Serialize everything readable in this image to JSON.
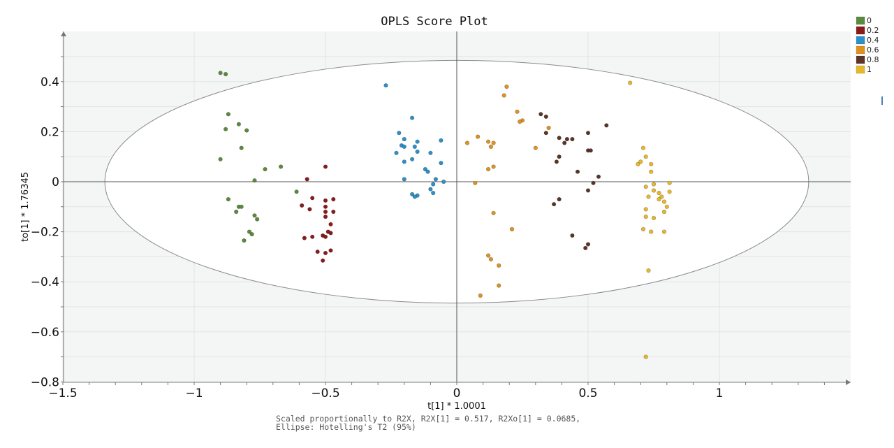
{
  "chart_data": {
    "type": "scatter",
    "title": "OPLS Score Plot",
    "xlabel": "t[1] * 1.0001",
    "ylabel": "to[1] * 1.76345",
    "xlim": [
      -1.5,
      1.5
    ],
    "ylim": [
      -0.8,
      0.55
    ],
    "x_ticks": [
      -1.5,
      -1,
      -0.5,
      0,
      0.5,
      1
    ],
    "x_tick_labels": [
      "−1.5",
      "−1",
      "−0.5",
      "0",
      "0.5",
      "1"
    ],
    "y_ticks": [
      0.4,
      0.2,
      0,
      -0.2,
      -0.4,
      -0.6,
      -0.8
    ],
    "y_tick_labels": [
      "0.4",
      "0.2",
      "0",
      "−0.2",
      "−0.4",
      "−0.6",
      "−0.8"
    ],
    "grid": true,
    "legend_position": "top-right",
    "ellipse": {
      "center": [
        0,
        0
      ],
      "rx": 1.34,
      "ry": 0.485
    },
    "footnote": [
      "Scaled proportionally to R2X, R2X[1] = 0.517, R2Xo[1] = 0.0685,",
      "Ellipse: Hotelling's T2 (95%)"
    ],
    "series": [
      {
        "name": "0",
        "color": "#5a8a3c",
        "points": [
          [
            -0.9,
            0.435
          ],
          [
            -0.88,
            0.43
          ],
          [
            -0.87,
            0.27
          ],
          [
            -0.83,
            0.23
          ],
          [
            -0.8,
            0.205
          ],
          [
            -0.88,
            0.21
          ],
          [
            -0.82,
            0.135
          ],
          [
            -0.9,
            0.09
          ],
          [
            -0.67,
            0.06
          ],
          [
            -0.73,
            0.05
          ],
          [
            -0.77,
            0.005
          ],
          [
            -0.61,
            -0.04
          ],
          [
            -0.87,
            -0.07
          ],
          [
            -0.83,
            -0.1
          ],
          [
            -0.82,
            -0.1
          ],
          [
            -0.84,
            -0.12
          ],
          [
            -0.77,
            -0.135
          ],
          [
            -0.76,
            -0.15
          ],
          [
            -0.79,
            -0.2
          ],
          [
            -0.78,
            -0.21
          ],
          [
            -0.81,
            -0.235
          ]
        ]
      },
      {
        "name": "0.2",
        "color": "#8b1a1a",
        "points": [
          [
            -0.5,
            0.06
          ],
          [
            -0.57,
            0.01
          ],
          [
            -0.55,
            -0.065
          ],
          [
            -0.5,
            -0.075
          ],
          [
            -0.47,
            -0.07
          ],
          [
            -0.59,
            -0.095
          ],
          [
            -0.5,
            -0.1
          ],
          [
            -0.56,
            -0.11
          ],
          [
            -0.5,
            -0.12
          ],
          [
            -0.47,
            -0.12
          ],
          [
            -0.5,
            -0.14
          ],
          [
            -0.48,
            -0.17
          ],
          [
            -0.49,
            -0.2
          ],
          [
            -0.48,
            -0.205
          ],
          [
            -0.51,
            -0.215
          ],
          [
            -0.58,
            -0.225
          ],
          [
            -0.55,
            -0.22
          ],
          [
            -0.5,
            -0.22
          ],
          [
            -0.53,
            -0.28
          ],
          [
            -0.5,
            -0.285
          ],
          [
            -0.48,
            -0.275
          ],
          [
            -0.51,
            -0.315
          ]
        ]
      },
      {
        "name": "0.4",
        "color": "#2e90c8",
        "points": [
          [
            -0.27,
            0.385
          ],
          [
            -0.17,
            0.255
          ],
          [
            -0.22,
            0.195
          ],
          [
            -0.2,
            0.17
          ],
          [
            -0.15,
            0.16
          ],
          [
            -0.06,
            0.165
          ],
          [
            -0.21,
            0.145
          ],
          [
            -0.2,
            0.14
          ],
          [
            -0.16,
            0.14
          ],
          [
            -0.23,
            0.115
          ],
          [
            -0.15,
            0.12
          ],
          [
            -0.1,
            0.115
          ],
          [
            -0.17,
            0.09
          ],
          [
            -0.2,
            0.08
          ],
          [
            -0.06,
            0.075
          ],
          [
            -0.12,
            0.05
          ],
          [
            -0.11,
            0.04
          ],
          [
            -0.08,
            0.01
          ],
          [
            -0.2,
            0.01
          ],
          [
            -0.05,
            0.0
          ],
          [
            -0.09,
            -0.01
          ],
          [
            -0.1,
            -0.03
          ],
          [
            -0.09,
            -0.045
          ],
          [
            -0.17,
            -0.05
          ],
          [
            -0.15,
            -0.055
          ],
          [
            -0.16,
            -0.06
          ]
        ]
      },
      {
        "name": "0.6",
        "color": "#e0921f",
        "points": [
          [
            0.19,
            0.38
          ],
          [
            0.18,
            0.345
          ],
          [
            0.23,
            0.28
          ],
          [
            0.25,
            0.245
          ],
          [
            0.24,
            0.24
          ],
          [
            0.35,
            0.215
          ],
          [
            0.08,
            0.18
          ],
          [
            0.12,
            0.16
          ],
          [
            0.04,
            0.155
          ],
          [
            0.14,
            0.155
          ],
          [
            0.13,
            0.14
          ],
          [
            0.3,
            0.135
          ],
          [
            0.14,
            0.06
          ],
          [
            0.12,
            0.05
          ],
          [
            0.07,
            -0.005
          ],
          [
            0.14,
            -0.125
          ],
          [
            0.21,
            -0.19
          ],
          [
            0.12,
            -0.295
          ],
          [
            0.13,
            -0.31
          ],
          [
            0.16,
            -0.335
          ],
          [
            0.16,
            -0.415
          ],
          [
            0.09,
            -0.455
          ]
        ]
      },
      {
        "name": "0.8",
        "color": "#5a3428",
        "points": [
          [
            0.32,
            0.27
          ],
          [
            0.34,
            0.26
          ],
          [
            0.57,
            0.225
          ],
          [
            0.34,
            0.195
          ],
          [
            0.5,
            0.195
          ],
          [
            0.39,
            0.175
          ],
          [
            0.42,
            0.17
          ],
          [
            0.44,
            0.17
          ],
          [
            0.41,
            0.155
          ],
          [
            0.5,
            0.125
          ],
          [
            0.51,
            0.125
          ],
          [
            0.39,
            0.1
          ],
          [
            0.38,
            0.08
          ],
          [
            0.46,
            0.04
          ],
          [
            0.54,
            0.02
          ],
          [
            0.52,
            -0.005
          ],
          [
            0.5,
            -0.035
          ],
          [
            0.39,
            -0.07
          ],
          [
            0.37,
            -0.09
          ],
          [
            0.44,
            -0.215
          ],
          [
            0.5,
            -0.25
          ],
          [
            0.49,
            -0.265
          ]
        ]
      },
      {
        "name": "1",
        "color": "#e8b828",
        "points": [
          [
            0.66,
            0.395
          ],
          [
            0.71,
            0.135
          ],
          [
            0.72,
            0.1
          ],
          [
            0.74,
            0.07
          ],
          [
            0.7,
            0.08
          ],
          [
            0.69,
            0.07
          ],
          [
            0.74,
            0.04
          ],
          [
            0.81,
            -0.005
          ],
          [
            0.75,
            -0.01
          ],
          [
            0.72,
            -0.02
          ],
          [
            0.75,
            -0.035
          ],
          [
            0.77,
            -0.045
          ],
          [
            0.81,
            -0.04
          ],
          [
            0.78,
            -0.06
          ],
          [
            0.77,
            -0.07
          ],
          [
            0.73,
            -0.06
          ],
          [
            0.79,
            -0.08
          ],
          [
            0.8,
            -0.1
          ],
          [
            0.72,
            -0.11
          ],
          [
            0.79,
            -0.12
          ],
          [
            0.72,
            -0.14
          ],
          [
            0.75,
            -0.145
          ],
          [
            0.71,
            -0.19
          ],
          [
            0.74,
            -0.2
          ],
          [
            0.79,
            -0.2
          ],
          [
            0.73,
            -0.355
          ],
          [
            0.72,
            -0.7
          ]
        ]
      }
    ]
  }
}
